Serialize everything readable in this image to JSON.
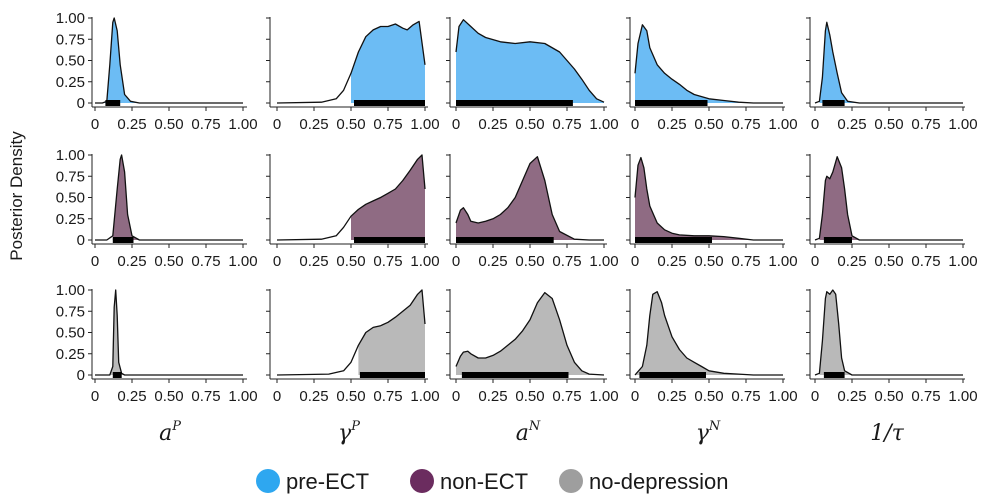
{
  "chart_data": {
    "type": "area",
    "description_free": true,
    "y_axis_label": "Posterior Density",
    "parameters": [
      {
        "label": "a",
        "sup": "P"
      },
      {
        "label": "γ",
        "sup": "P"
      },
      {
        "label": "a",
        "sup": "N"
      },
      {
        "label": "γ",
        "sup": "N"
      },
      {
        "label": "1/τ",
        "sup": ""
      }
    ],
    "x_ticks": [
      "0",
      "0.25",
      "0.50",
      "0.75",
      "1.00"
    ],
    "x_tick_values": [
      0,
      0.25,
      0.5,
      0.75,
      1.0
    ],
    "y_ticks": [
      "0",
      "0.25",
      "0.50",
      "0.75",
      "1.00"
    ],
    "y_tick_values": [
      0,
      0.25,
      0.5,
      0.75,
      1.0
    ],
    "xlim": [
      0,
      1
    ],
    "ylim": [
      0,
      1
    ],
    "groups": [
      {
        "name": "pre-ECT",
        "color": "#6cbcf4",
        "legend_color": "#2ea7f0"
      },
      {
        "name": "non-ECT",
        "color": "#8f6b83",
        "legend_color": "#6b2c5f"
      },
      {
        "name": "no-depression",
        "color": "#b9b9b9",
        "legend_color": "#9e9e9e"
      }
    ],
    "panels": [
      [
        {
          "x": [
            0.0,
            0.05,
            0.08,
            0.1,
            0.12,
            0.13,
            0.15,
            0.17,
            0.2,
            0.24,
            0.3,
            1.0
          ],
          "y": [
            0,
            0,
            0.02,
            0.45,
            0.95,
            1.0,
            0.85,
            0.45,
            0.1,
            0.02,
            0,
            0
          ],
          "hdi": [
            0.07,
            0.17
          ],
          "fill": [
            0.05,
            0.3
          ]
        },
        {
          "x": [
            0.0,
            0.3,
            0.4,
            0.45,
            0.5,
            0.55,
            0.6,
            0.65,
            0.7,
            0.75,
            0.8,
            0.85,
            0.88,
            0.92,
            0.96,
            1.0
          ],
          "y": [
            0,
            0.01,
            0.05,
            0.15,
            0.35,
            0.6,
            0.78,
            0.86,
            0.9,
            0.9,
            0.93,
            0.88,
            0.86,
            0.92,
            0.96,
            0.45
          ],
          "hdi": [
            0.52,
            1.0
          ],
          "fill": [
            0.5,
            1.0
          ]
        },
        {
          "x": [
            0.0,
            0.02,
            0.05,
            0.1,
            0.15,
            0.2,
            0.3,
            0.4,
            0.5,
            0.6,
            0.7,
            0.75,
            0.8,
            0.85,
            0.9,
            0.95,
            1.0
          ],
          "y": [
            0.6,
            0.9,
            0.98,
            0.9,
            0.82,
            0.77,
            0.72,
            0.7,
            0.72,
            0.7,
            0.6,
            0.5,
            0.4,
            0.28,
            0.15,
            0.05,
            0.01
          ],
          "hdi": [
            0.0,
            0.79
          ],
          "fill": [
            0.0,
            1.0
          ]
        },
        {
          "x": [
            0.0,
            0.02,
            0.05,
            0.08,
            0.1,
            0.15,
            0.2,
            0.25,
            0.3,
            0.35,
            0.4,
            0.5,
            0.6,
            0.7,
            0.8,
            1.0
          ],
          "y": [
            0.35,
            0.7,
            0.92,
            0.85,
            0.65,
            0.45,
            0.35,
            0.28,
            0.22,
            0.15,
            0.1,
            0.05,
            0.03,
            0.01,
            0,
            0
          ],
          "hdi": [
            0.0,
            0.49
          ],
          "fill": [
            0.0,
            1.0
          ]
        },
        {
          "x": [
            0.0,
            0.03,
            0.05,
            0.07,
            0.08,
            0.1,
            0.12,
            0.15,
            0.18,
            0.22,
            0.3,
            1.0
          ],
          "y": [
            0,
            0.02,
            0.3,
            0.85,
            0.95,
            0.8,
            0.6,
            0.35,
            0.12,
            0.02,
            0,
            0
          ],
          "hdi": [
            0.05,
            0.2
          ],
          "fill": [
            0.03,
            0.3
          ]
        }
      ],
      [
        {
          "x": [
            0.0,
            0.08,
            0.12,
            0.15,
            0.17,
            0.18,
            0.2,
            0.22,
            0.25,
            0.3,
            1.0
          ],
          "y": [
            0,
            0,
            0.05,
            0.6,
            0.95,
            1.0,
            0.8,
            0.3,
            0.05,
            0,
            0
          ],
          "hdi": [
            0.12,
            0.26
          ],
          "fill": [
            0.1,
            0.3
          ]
        },
        {
          "x": [
            0.0,
            0.3,
            0.4,
            0.45,
            0.5,
            0.55,
            0.6,
            0.65,
            0.7,
            0.75,
            0.8,
            0.85,
            0.9,
            0.95,
            0.98,
            1.0
          ],
          "y": [
            0,
            0.01,
            0.05,
            0.15,
            0.28,
            0.36,
            0.42,
            0.46,
            0.5,
            0.55,
            0.6,
            0.7,
            0.82,
            0.95,
            1.0,
            0.6
          ],
          "hdi": [
            0.52,
            1.0
          ],
          "fill": [
            0.5,
            1.0
          ]
        },
        {
          "x": [
            0.0,
            0.03,
            0.05,
            0.08,
            0.1,
            0.15,
            0.2,
            0.25,
            0.3,
            0.35,
            0.4,
            0.45,
            0.5,
            0.55,
            0.6,
            0.65,
            0.7,
            0.8,
            0.9,
            1.0
          ],
          "y": [
            0.2,
            0.35,
            0.38,
            0.3,
            0.22,
            0.2,
            0.22,
            0.25,
            0.3,
            0.38,
            0.5,
            0.7,
            0.9,
            0.98,
            0.7,
            0.3,
            0.1,
            0.01,
            0,
            0
          ],
          "hdi": [
            0.0,
            0.66
          ],
          "fill": [
            0.0,
            1.0
          ]
        },
        {
          "x": [
            0.0,
            0.02,
            0.04,
            0.06,
            0.08,
            0.1,
            0.15,
            0.2,
            0.25,
            0.3,
            0.4,
            0.5,
            0.6,
            0.7,
            0.8,
            1.0
          ],
          "y": [
            0.5,
            0.88,
            0.97,
            0.85,
            0.6,
            0.4,
            0.2,
            0.12,
            0.08,
            0.06,
            0.05,
            0.05,
            0.04,
            0.02,
            0,
            0
          ],
          "hdi": [
            0.0,
            0.52
          ],
          "fill": [
            0.0,
            1.0
          ]
        },
        {
          "x": [
            0.0,
            0.03,
            0.05,
            0.07,
            0.08,
            0.1,
            0.12,
            0.15,
            0.18,
            0.2,
            0.22,
            0.25,
            0.3,
            1.0
          ],
          "y": [
            0,
            0.02,
            0.3,
            0.7,
            0.75,
            0.72,
            0.8,
            0.98,
            0.85,
            0.6,
            0.3,
            0.05,
            0,
            0
          ],
          "hdi": [
            0.06,
            0.25
          ],
          "fill": [
            0.03,
            0.3
          ]
        }
      ],
      [
        {
          "x": [
            0.0,
            0.1,
            0.12,
            0.13,
            0.14,
            0.15,
            0.16,
            0.18,
            0.2,
            1.0
          ],
          "y": [
            0,
            0,
            0.1,
            0.8,
            1.0,
            0.7,
            0.15,
            0.02,
            0,
            0
          ],
          "hdi": [
            0.12,
            0.18
          ],
          "fill": [
            0.1,
            0.22
          ]
        },
        {
          "x": [
            0.0,
            0.35,
            0.45,
            0.5,
            0.55,
            0.6,
            0.65,
            0.7,
            0.75,
            0.8,
            0.85,
            0.9,
            0.95,
            0.98,
            1.0
          ],
          "y": [
            0,
            0.01,
            0.05,
            0.15,
            0.35,
            0.5,
            0.56,
            0.58,
            0.62,
            0.68,
            0.75,
            0.82,
            0.95,
            1.0,
            0.6
          ],
          "hdi": [
            0.56,
            1.0
          ],
          "fill": [
            0.52,
            1.0
          ]
        },
        {
          "x": [
            0.0,
            0.03,
            0.05,
            0.08,
            0.1,
            0.15,
            0.2,
            0.25,
            0.3,
            0.35,
            0.4,
            0.45,
            0.5,
            0.55,
            0.6,
            0.65,
            0.7,
            0.75,
            0.8,
            0.85,
            0.9,
            1.0
          ],
          "y": [
            0.1,
            0.22,
            0.27,
            0.28,
            0.25,
            0.2,
            0.2,
            0.23,
            0.28,
            0.35,
            0.42,
            0.52,
            0.65,
            0.85,
            0.97,
            0.9,
            0.65,
            0.35,
            0.15,
            0.05,
            0.01,
            0
          ],
          "hdi": [
            0.04,
            0.76
          ],
          "fill": [
            0.0,
            1.0
          ]
        },
        {
          "x": [
            0.0,
            0.05,
            0.08,
            0.1,
            0.12,
            0.15,
            0.18,
            0.2,
            0.25,
            0.3,
            0.35,
            0.4,
            0.45,
            0.5,
            0.6,
            0.7,
            0.8,
            1.0
          ],
          "y": [
            0,
            0.1,
            0.35,
            0.7,
            0.95,
            0.98,
            0.85,
            0.7,
            0.45,
            0.3,
            0.2,
            0.15,
            0.1,
            0.05,
            0.02,
            0.01,
            0,
            0
          ],
          "hdi": [
            0.03,
            0.48
          ],
          "fill": [
            0.0,
            0.8
          ]
        },
        {
          "x": [
            0.0,
            0.03,
            0.05,
            0.07,
            0.08,
            0.1,
            0.12,
            0.14,
            0.16,
            0.18,
            0.2,
            0.25,
            1.0
          ],
          "y": [
            0,
            0.02,
            0.4,
            0.9,
            0.98,
            0.95,
            1.0,
            0.95,
            0.6,
            0.2,
            0.05,
            0,
            0
          ],
          "hdi": [
            0.06,
            0.2
          ],
          "fill": [
            0.03,
            0.25
          ]
        }
      ]
    ]
  }
}
